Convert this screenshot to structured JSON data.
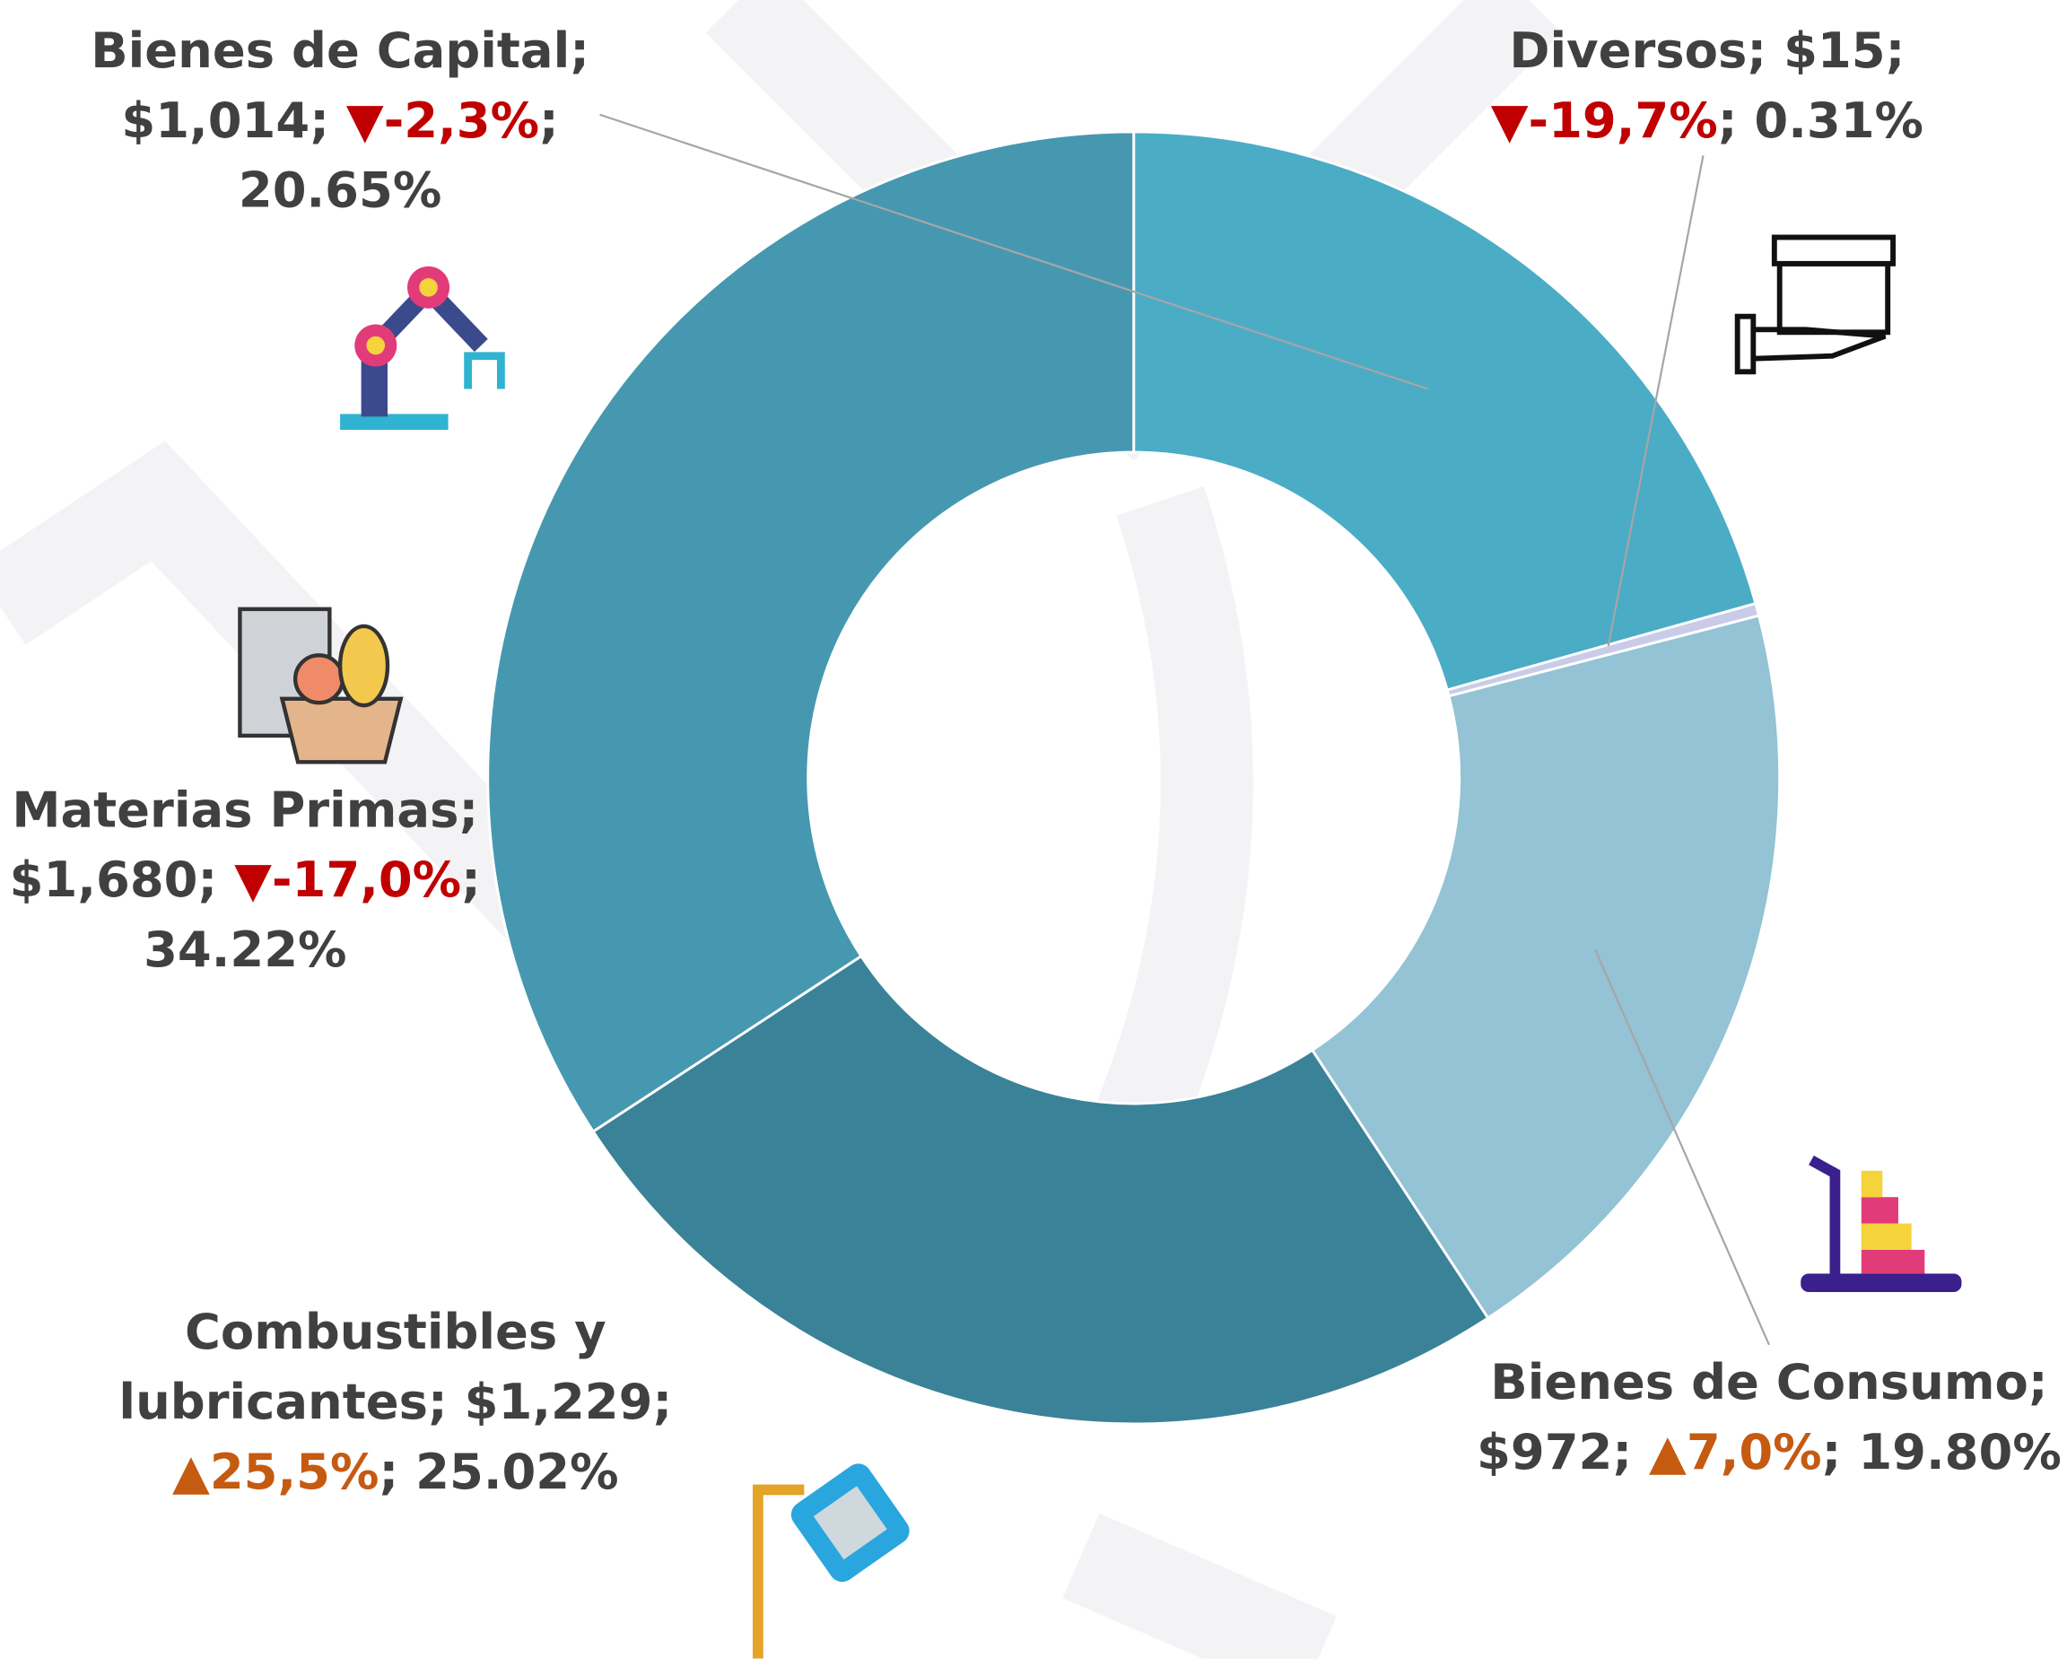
{
  "chart_data": {
    "type": "donut",
    "categories": [
      "Bienes de Capital",
      "Diversos",
      "Bienes de Consumo",
      "Combustibles y lubricantes",
      "Materias Primas"
    ],
    "values": [
      20.65,
      0.31,
      19.8,
      25.02,
      34.22
    ],
    "value_labels": [
      "20.65%",
      "0.31%",
      "19.80%",
      "25.02%",
      "34.22%"
    ],
    "colors": [
      "#4bacc6",
      "#c9cbe8",
      "#93c3d4",
      "#3a8297",
      "#4698b0"
    ],
    "amounts": [
      1014,
      15,
      972,
      1229,
      1680
    ],
    "amount_labels": [
      "$1,014",
      "$15",
      "$972",
      "$1,229",
      "$1,680"
    ],
    "changes": [
      -2.3,
      -19.7,
      7.0,
      25.5,
      -17.0
    ],
    "change_labels": [
      "▼-2,3%",
      "▼-19,7%",
      "▲7,0%",
      "▲25,5%",
      "▼-17,0%"
    ],
    "separator": ";",
    "down_color": "#c00000",
    "up_color": "#c55a11",
    "label_color": "#404040"
  }
}
